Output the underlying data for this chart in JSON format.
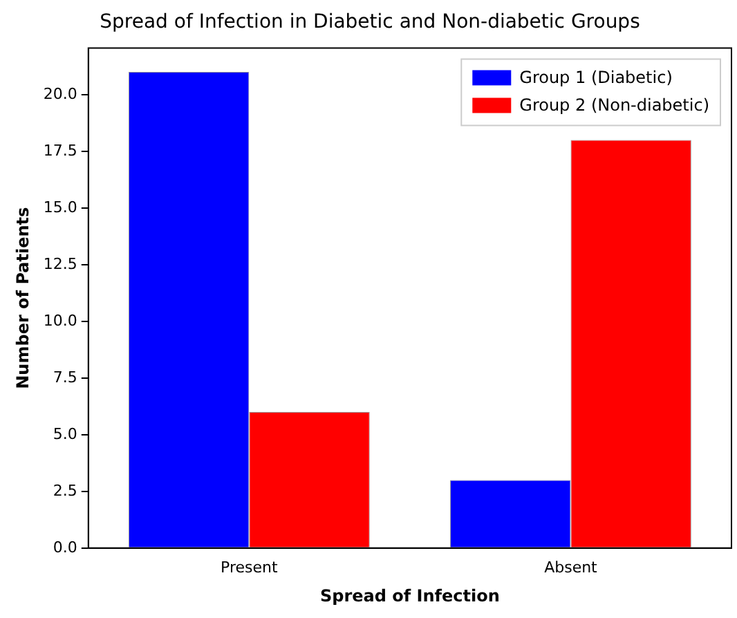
{
  "chart_data": {
    "type": "bar",
    "title": "Spread of Infection in Diabetic and Non-diabetic Groups",
    "xlabel": "Spread of Infection",
    "ylabel": "Number of Patients",
    "categories": [
      "Present",
      "Absent"
    ],
    "series": [
      {
        "name": "Group 1 (Diabetic)",
        "color": "#0000ff",
        "values": [
          21,
          3
        ]
      },
      {
        "name": "Group 2 (Non-diabetic)",
        "color": "#ff0000",
        "values": [
          6,
          18
        ]
      }
    ],
    "ylim": [
      0,
      22.05
    ],
    "yticks": [
      {
        "value": 0,
        "label": "0.0"
      },
      {
        "value": 2.5,
        "label": "2.5"
      },
      {
        "value": 5,
        "label": "5.0"
      },
      {
        "value": 7.5,
        "label": "7.5"
      },
      {
        "value": 10,
        "label": "10.0"
      },
      {
        "value": 12.5,
        "label": "12.5"
      },
      {
        "value": 15,
        "label": "15.0"
      },
      {
        "value": 17.5,
        "label": "17.5"
      },
      {
        "value": 20,
        "label": "20.0"
      }
    ],
    "grid": false,
    "legend": "top right"
  }
}
